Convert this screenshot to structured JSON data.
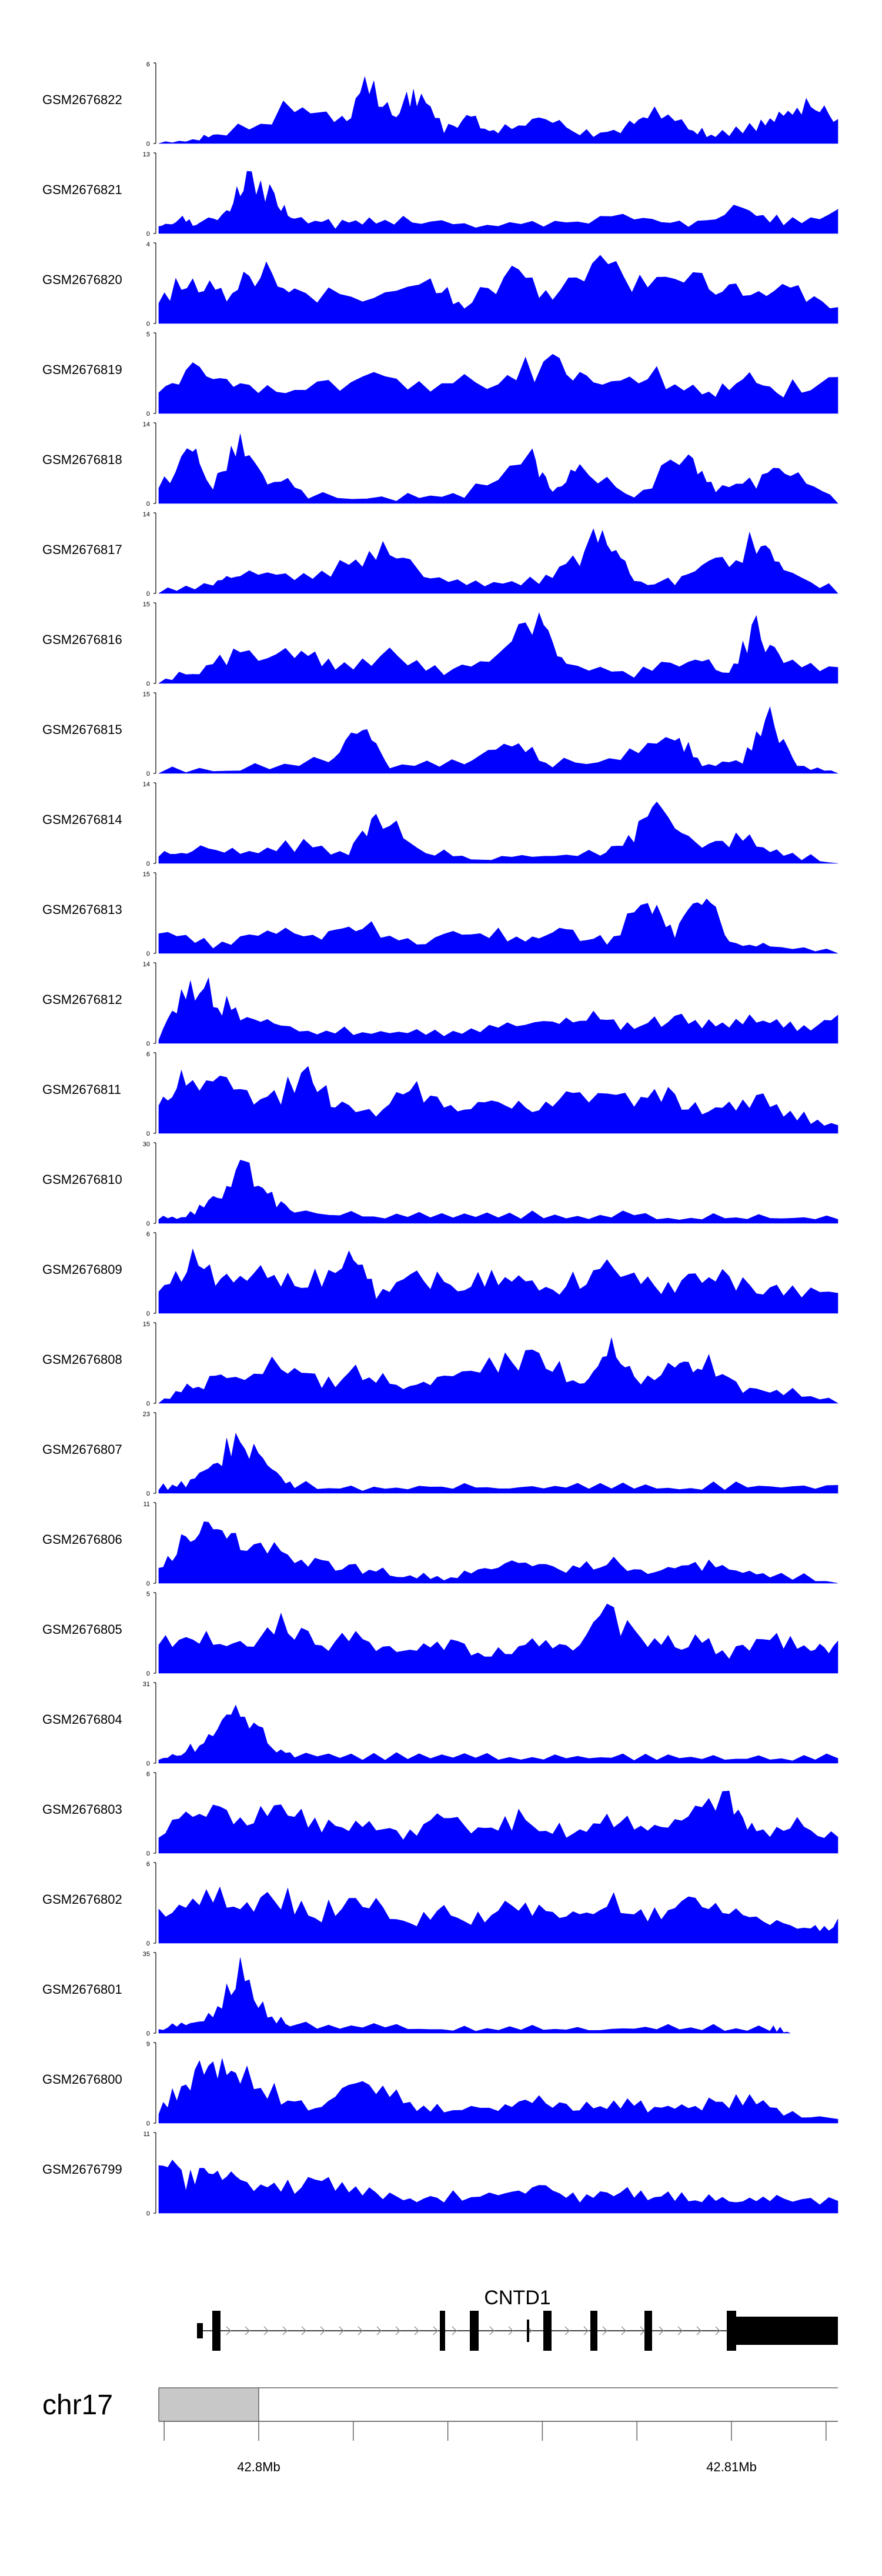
{
  "chart_data": {
    "type": "area",
    "title": "",
    "xlabel": "",
    "ylabel": "",
    "chromosome": "chr17",
    "color": "#0000ff",
    "axis_ticks": [
      {
        "pos": 42.8,
        "label": "42.8Mb"
      },
      {
        "pos": 42.81,
        "label": "42.81Mb"
      }
    ],
    "gene": {
      "name": "CNTD1"
    },
    "tracks": [
      {
        "name": "GSM2676822",
        "ymin": "0",
        "ymax": "6"
      },
      {
        "name": "GSM2676821",
        "ymin": "0",
        "ymax": "13"
      },
      {
        "name": "GSM2676820",
        "ymin": "0",
        "ymax": "4"
      },
      {
        "name": "GSM2676819",
        "ymin": "0",
        "ymax": "5"
      },
      {
        "name": "GSM2676818",
        "ymin": "0",
        "ymax": "14"
      },
      {
        "name": "GSM2676817",
        "ymin": "0",
        "ymax": "14"
      },
      {
        "name": "GSM2676816",
        "ymin": "0",
        "ymax": "15"
      },
      {
        "name": "GSM2676815",
        "ymin": "0",
        "ymax": "15"
      },
      {
        "name": "GSM2676814",
        "ymin": "0",
        "ymax": "14"
      },
      {
        "name": "GSM2676813",
        "ymin": "0",
        "ymax": "15"
      },
      {
        "name": "GSM2676812",
        "ymin": "0",
        "ymax": "14"
      },
      {
        "name": "GSM2676811",
        "ymin": "0",
        "ymax": "6"
      },
      {
        "name": "GSM2676810",
        "ymin": "0",
        "ymax": "30"
      },
      {
        "name": "GSM2676809",
        "ymin": "0",
        "ymax": "6"
      },
      {
        "name": "GSM2676808",
        "ymin": "0",
        "ymax": "15"
      },
      {
        "name": "GSM2676807",
        "ymin": "0",
        "ymax": "23"
      },
      {
        "name": "GSM2676806",
        "ymin": "0",
        "ymax": "11"
      },
      {
        "name": "GSM2676805",
        "ymin": "0",
        "ymax": "5"
      },
      {
        "name": "GSM2676804",
        "ymin": "0",
        "ymax": "31"
      },
      {
        "name": "GSM2676803",
        "ymin": "0",
        "ymax": "6"
      },
      {
        "name": "GSM2676802",
        "ymin": "0",
        "ymax": "6"
      },
      {
        "name": "GSM2676801",
        "ymin": "0",
        "ymax": "35"
      },
      {
        "name": "GSM2676800",
        "ymin": "0",
        "ymax": "9"
      },
      {
        "name": "GSM2676799",
        "ymin": "0",
        "ymax": "11"
      }
    ]
  }
}
